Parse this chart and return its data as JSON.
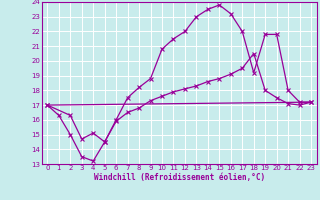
{
  "title": "",
  "xlabel": "Windchill (Refroidissement éolien,°C)",
  "ylabel": "",
  "xlim": [
    -0.5,
    23.5
  ],
  "ylim": [
    13,
    24
  ],
  "xticks": [
    0,
    1,
    2,
    3,
    4,
    5,
    6,
    7,
    8,
    9,
    10,
    11,
    12,
    13,
    14,
    15,
    16,
    17,
    18,
    19,
    20,
    21,
    22,
    23
  ],
  "yticks": [
    13,
    14,
    15,
    16,
    17,
    18,
    19,
    20,
    21,
    22,
    23,
    24
  ],
  "bg_color": "#c8ecec",
  "line_color": "#990099",
  "grid_color": "#ffffff",
  "line1_x": [
    0,
    1,
    2,
    3,
    4,
    5,
    6,
    7,
    8,
    9,
    10,
    11,
    12,
    13,
    14,
    15,
    16,
    17,
    18,
    19,
    20,
    21,
    22,
    23
  ],
  "line1_y": [
    17.0,
    16.3,
    15.0,
    13.5,
    13.2,
    14.5,
    15.9,
    16.5,
    16.8,
    17.3,
    17.6,
    17.9,
    18.1,
    18.3,
    18.6,
    18.8,
    19.1,
    19.5,
    20.5,
    18.0,
    17.5,
    17.1,
    17.0,
    17.2
  ],
  "line2_x": [
    0,
    2,
    3,
    4,
    5,
    6,
    7,
    8,
    9,
    10,
    11,
    12,
    13,
    14,
    15,
    16,
    17,
    18,
    19,
    20,
    21,
    22,
    23
  ],
  "line2_y": [
    17.0,
    16.3,
    14.7,
    15.1,
    14.5,
    16.0,
    17.5,
    18.2,
    18.8,
    20.8,
    21.5,
    22.0,
    23.0,
    23.5,
    23.8,
    23.2,
    22.0,
    19.2,
    21.8,
    21.8,
    18.0,
    17.2,
    17.2
  ],
  "line3_x": [
    0,
    23
  ],
  "line3_y": [
    17.0,
    17.2
  ]
}
